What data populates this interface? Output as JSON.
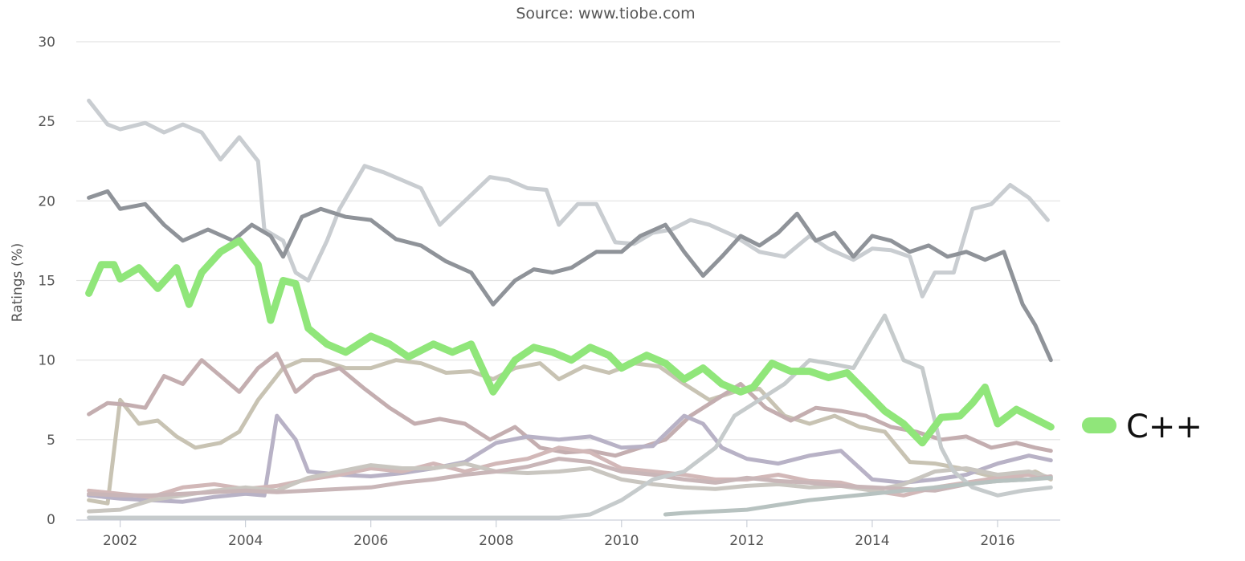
{
  "chart_data": {
    "type": "line",
    "subtitle": "Source: www.tiobe.com",
    "xlabel": "",
    "ylabel": "Ratings (%)",
    "xlim": [
      2001.3,
      2017.0
    ],
    "ylim": [
      0,
      30
    ],
    "y_ticks": [
      "0",
      "5",
      "10",
      "15",
      "20",
      "25",
      "30"
    ],
    "x_ticks": [
      "2002",
      "2004",
      "2006",
      "2008",
      "2010",
      "2012",
      "2014",
      "2016"
    ],
    "grid": true,
    "legend": {
      "position": "right",
      "visible_entries": [
        "C++"
      ]
    },
    "highlight_color": "#90e67a",
    "series": [
      {
        "name": "C++",
        "color": "#90e67a",
        "highlight": true,
        "x": [
          2001.5,
          2001.7,
          2001.9,
          2002.0,
          2002.3,
          2002.6,
          2002.9,
          2003.1,
          2003.3,
          2003.6,
          2003.9,
          2004.2,
          2004.4,
          2004.6,
          2004.8,
          2005.0,
          2005.3,
          2005.6,
          2006.0,
          2006.3,
          2006.6,
          2007.0,
          2007.3,
          2007.6,
          2007.95,
          2008.3,
          2008.6,
          2008.9,
          2009.2,
          2009.5,
          2009.8,
          2010.0,
          2010.4,
          2010.7,
          2011.0,
          2011.3,
          2011.6,
          2011.9,
          2012.1,
          2012.4,
          2012.7,
          2013.0,
          2013.3,
          2013.6,
          2013.9,
          2014.2,
          2014.5,
          2014.8,
          2015.1,
          2015.4,
          2015.6,
          2015.8,
          2016.0,
          2016.3,
          2016.6,
          2016.85
        ],
        "y": [
          14.2,
          16.0,
          16.0,
          15.1,
          15.8,
          14.5,
          15.8,
          13.5,
          15.5,
          16.8,
          17.5,
          16.0,
          12.5,
          15.0,
          14.8,
          12.0,
          11.0,
          10.5,
          11.5,
          11.0,
          10.2,
          11.0,
          10.5,
          11.0,
          8.0,
          10.0,
          10.8,
          10.5,
          10.0,
          10.8,
          10.3,
          9.5,
          10.3,
          9.8,
          8.8,
          9.5,
          8.5,
          8.0,
          8.3,
          9.8,
          9.3,
          9.3,
          8.9,
          9.2,
          8.0,
          6.8,
          6.0,
          4.8,
          6.4,
          6.5,
          7.3,
          8.3,
          6.0,
          6.9,
          6.3,
          5.8
        ]
      },
      {
        "name": "",
        "color": "#c9cdd1",
        "x": [
          2001.5,
          2001.8,
          2002.0,
          2002.4,
          2002.7,
          2003.0,
          2003.3,
          2003.6,
          2003.9,
          2004.2,
          2004.3,
          2004.6,
          2004.8,
          2005.0,
          2005.3,
          2005.5,
          2005.9,
          2006.2,
          2006.5,
          2006.8,
          2007.1,
          2007.5,
          2007.9,
          2008.2,
          2008.5,
          2008.8,
          2009.0,
          2009.3,
          2009.6,
          2009.9,
          2010.2,
          2010.5,
          2010.8,
          2011.1,
          2011.4,
          2011.8,
          2012.2,
          2012.6,
          2013.0,
          2013.3,
          2013.7,
          2014.0,
          2014.3,
          2014.6,
          2014.8,
          2015.0,
          2015.3,
          2015.6,
          2015.9,
          2016.2,
          2016.5,
          2016.8
        ],
        "y": [
          26.3,
          24.8,
          24.5,
          24.9,
          24.3,
          24.8,
          24.3,
          22.6,
          24.0,
          22.5,
          18.2,
          17.5,
          15.5,
          15.0,
          17.5,
          19.5,
          22.2,
          21.8,
          21.3,
          20.8,
          18.5,
          20.0,
          21.5,
          21.3,
          20.8,
          20.7,
          18.5,
          19.8,
          19.8,
          17.4,
          17.3,
          18.0,
          18.2,
          18.8,
          18.5,
          17.8,
          16.8,
          16.5,
          17.8,
          17.0,
          16.3,
          17.0,
          16.9,
          16.5,
          14.0,
          15.5,
          15.5,
          19.5,
          19.8,
          21.0,
          20.2,
          18.8
        ]
      },
      {
        "name": "",
        "color": "#8f9399",
        "x": [
          2001.5,
          2001.8,
          2002.0,
          2002.4,
          2002.7,
          2003.0,
          2003.4,
          2003.8,
          2004.1,
          2004.4,
          2004.6,
          2004.9,
          2005.2,
          2005.6,
          2006.0,
          2006.4,
          2006.8,
          2007.2,
          2007.6,
          2007.95,
          2008.3,
          2008.6,
          2008.9,
          2009.2,
          2009.6,
          2010.0,
          2010.3,
          2010.7,
          2011.0,
          2011.3,
          2011.6,
          2011.9,
          2012.2,
          2012.5,
          2012.8,
          2013.1,
          2013.4,
          2013.7,
          2014.0,
          2014.3,
          2014.6,
          2014.9,
          2015.2,
          2015.5,
          2015.8,
          2016.1,
          2016.4,
          2016.6,
          2016.85
        ],
        "y": [
          20.2,
          20.6,
          19.5,
          19.8,
          18.5,
          17.5,
          18.2,
          17.5,
          18.5,
          17.8,
          16.5,
          19.0,
          19.5,
          19.0,
          18.8,
          17.6,
          17.2,
          16.2,
          15.5,
          13.5,
          15.0,
          15.7,
          15.5,
          15.8,
          16.8,
          16.8,
          17.8,
          18.5,
          16.8,
          15.3,
          16.5,
          17.8,
          17.2,
          18.0,
          19.2,
          17.5,
          18.0,
          16.5,
          17.8,
          17.5,
          16.8,
          17.2,
          16.5,
          16.8,
          16.3,
          16.8,
          13.5,
          12.2,
          10.0
        ]
      },
      {
        "name": "",
        "color": "#c8c3b3",
        "x": [
          2001.5,
          2001.8,
          2002.0,
          2002.3,
          2002.6,
          2002.9,
          2003.2,
          2003.6,
          2003.9,
          2004.2,
          2004.6,
          2004.9,
          2005.2,
          2005.6,
          2006.0,
          2006.4,
          2006.8,
          2007.2,
          2007.6,
          2007.95,
          2008.3,
          2008.7,
          2009.0,
          2009.4,
          2009.8,
          2010.2,
          2010.6,
          2011.0,
          2011.4,
          2011.8,
          2012.2,
          2012.6,
          2013.0,
          2013.4,
          2013.8,
          2014.2,
          2014.6,
          2015.0,
          2015.4,
          2015.8,
          2016.2,
          2016.6,
          2016.85
        ],
        "y": [
          1.2,
          1.0,
          7.5,
          6.0,
          6.2,
          5.2,
          4.5,
          4.8,
          5.5,
          7.5,
          9.5,
          10.0,
          10.0,
          9.5,
          9.5,
          10.0,
          9.8,
          9.2,
          9.3,
          8.8,
          9.5,
          9.8,
          8.8,
          9.6,
          9.2,
          9.8,
          9.6,
          8.5,
          7.5,
          8.0,
          8.2,
          6.5,
          6.0,
          6.5,
          5.8,
          5.5,
          3.6,
          3.5,
          3.2,
          2.8,
          2.5,
          3.0,
          2.5
        ]
      },
      {
        "name": "",
        "color": "#c4aeb0",
        "x": [
          2001.5,
          2001.8,
          2002.1,
          2002.4,
          2002.7,
          2003.0,
          2003.3,
          2003.6,
          2003.9,
          2004.2,
          2004.5,
          2004.8,
          2005.1,
          2005.5,
          2005.9,
          2006.3,
          2006.7,
          2007.1,
          2007.5,
          2007.9,
          2008.3,
          2008.7,
          2009.1,
          2009.5,
          2009.9,
          2010.3,
          2010.7,
          2011.1,
          2011.5,
          2011.9,
          2012.3,
          2012.7,
          2013.1,
          2013.5,
          2013.9,
          2014.3,
          2014.7,
          2015.1,
          2015.5,
          2015.9,
          2016.3,
          2016.6,
          2016.85
        ],
        "y": [
          6.6,
          7.3,
          7.2,
          7.0,
          9.0,
          8.5,
          10.0,
          9.0,
          8.0,
          9.5,
          10.4,
          8.0,
          9.0,
          9.5,
          8.2,
          7.0,
          6.0,
          6.3,
          6.0,
          5.0,
          5.8,
          4.5,
          4.2,
          4.3,
          4.0,
          4.5,
          5.0,
          6.5,
          7.5,
          8.5,
          7.0,
          6.2,
          7.0,
          6.8,
          6.5,
          5.8,
          5.5,
          5.0,
          5.2,
          4.5,
          4.8,
          4.5,
          4.3
        ]
      },
      {
        "name": "",
        "color": "#b8b2c6",
        "x": [
          2001.5,
          2002.0,
          2002.5,
          2003.0,
          2003.5,
          2004.0,
          2004.3,
          2004.5,
          2004.8,
          2005.0,
          2005.5,
          2006.0,
          2006.5,
          2007.0,
          2007.5,
          2008.0,
          2008.5,
          2009.0,
          2009.5,
          2010.0,
          2010.5,
          2011.0,
          2011.3,
          2011.6,
          2012.0,
          2012.5,
          2013.0,
          2013.5,
          2014.0,
          2014.5,
          2015.0,
          2015.5,
          2016.0,
          2016.5,
          2016.85
        ],
        "y": [
          1.5,
          1.3,
          1.2,
          1.1,
          1.4,
          1.6,
          1.5,
          6.5,
          5.0,
          3.0,
          2.8,
          2.7,
          2.9,
          3.2,
          3.6,
          4.8,
          5.2,
          5.0,
          5.2,
          4.5,
          4.6,
          6.5,
          6.0,
          4.5,
          3.8,
          3.5,
          4.0,
          4.3,
          2.5,
          2.3,
          2.5,
          2.8,
          3.5,
          4.0,
          3.7
        ]
      },
      {
        "name": "",
        "color": "#d2b8b8",
        "x": [
          2001.5,
          2002.0,
          2002.5,
          2003.0,
          2003.5,
          2004.0,
          2004.5,
          2005.0,
          2005.5,
          2006.0,
          2006.5,
          2007.0,
          2007.5,
          2008.0,
          2008.5,
          2009.0,
          2009.5,
          2010.0,
          2010.5,
          2011.0,
          2011.5,
          2012.0,
          2012.5,
          2013.0,
          2013.5,
          2014.0,
          2014.5,
          2015.0,
          2015.5,
          2016.0,
          2016.5,
          2016.85
        ],
        "y": [
          1.8,
          1.6,
          1.4,
          2.0,
          2.2,
          1.9,
          2.1,
          2.5,
          2.8,
          3.2,
          3.0,
          3.5,
          3.0,
          3.5,
          3.8,
          4.5,
          4.2,
          3.2,
          3.0,
          2.8,
          2.5,
          2.5,
          2.8,
          2.4,
          2.3,
          1.8,
          1.5,
          2.0,
          2.3,
          2.6,
          2.8,
          2.6
        ]
      },
      {
        "name": "",
        "color": "#c9c6c0",
        "x": [
          2001.5,
          2002.0,
          2002.5,
          2003.0,
          2003.5,
          2004.0,
          2004.5,
          2005.0,
          2005.5,
          2006.0,
          2006.5,
          2007.0,
          2007.5,
          2008.0,
          2008.5,
          2009.0,
          2009.5,
          2010.0,
          2010.5,
          2011.0,
          2011.5,
          2012.0,
          2012.5,
          2013.0,
          2013.5,
          2014.0,
          2014.5,
          2015.0,
          2015.5,
          2016.0,
          2016.5,
          2016.85
        ],
        "y": [
          0.5,
          0.6,
          1.2,
          1.5,
          1.8,
          2.0,
          1.8,
          2.6,
          3.0,
          3.4,
          3.2,
          3.2,
          3.5,
          3.0,
          2.9,
          3.0,
          3.2,
          2.5,
          2.2,
          2.0,
          1.9,
          2.1,
          2.2,
          2.0,
          2.1,
          1.8,
          2.2,
          3.0,
          3.2,
          2.8,
          3.0,
          2.6
        ]
      },
      {
        "name": "",
        "color": "#c9b6b8",
        "x": [
          2001.5,
          2002.0,
          2002.5,
          2003.0,
          2003.5,
          2004.0,
          2004.5,
          2005.0,
          2005.5,
          2006.0,
          2006.5,
          2007.0,
          2007.5,
          2008.0,
          2008.5,
          2009.0,
          2009.5,
          2010.0,
          2010.5,
          2011.0,
          2011.5,
          2012.0,
          2012.5,
          2013.0,
          2013.5,
          2014.0,
          2014.5,
          2015.0,
          2015.5,
          2016.0,
          2016.5,
          2016.85
        ],
        "y": [
          1.6,
          1.5,
          1.5,
          1.6,
          1.7,
          1.8,
          1.7,
          1.8,
          1.9,
          2.0,
          2.3,
          2.5,
          2.8,
          3.0,
          3.3,
          3.8,
          3.6,
          3.0,
          2.8,
          2.5,
          2.3,
          2.6,
          2.4,
          2.3,
          2.1,
          2.0,
          1.9,
          1.8,
          2.2,
          2.4,
          2.5,
          2.7
        ]
      },
      {
        "name": "",
        "color": "#c6cbcc",
        "x": [
          2001.5,
          2003.0,
          2005.0,
          2007.0,
          2009.0,
          2009.5,
          2010.0,
          2010.5,
          2011.0,
          2011.5,
          2011.8,
          2012.2,
          2012.6,
          2013.0,
          2013.3,
          2013.7,
          2014.0,
          2014.2,
          2014.5,
          2014.8,
          2015.1,
          2015.3,
          2015.6,
          2016.0,
          2016.4,
          2016.85
        ],
        "y": [
          0.1,
          0.1,
          0.1,
          0.1,
          0.1,
          0.3,
          1.2,
          2.5,
          3.0,
          4.5,
          6.5,
          7.5,
          8.5,
          10.0,
          9.8,
          9.5,
          11.5,
          12.8,
          10.0,
          9.5,
          4.5,
          3.0,
          2.0,
          1.5,
          1.8,
          2.0
        ]
      },
      {
        "name": "",
        "color": "#b7c2c0",
        "x": [
          2010.7,
          2011.0,
          2011.5,
          2012.0,
          2012.5,
          2013.0,
          2013.5,
          2014.0,
          2014.5,
          2015.0,
          2015.5,
          2016.0,
          2016.5,
          2016.85
        ],
        "y": [
          0.3,
          0.4,
          0.5,
          0.6,
          0.9,
          1.2,
          1.4,
          1.6,
          1.8,
          2.0,
          2.2,
          2.4,
          2.5,
          2.6
        ]
      }
    ]
  }
}
